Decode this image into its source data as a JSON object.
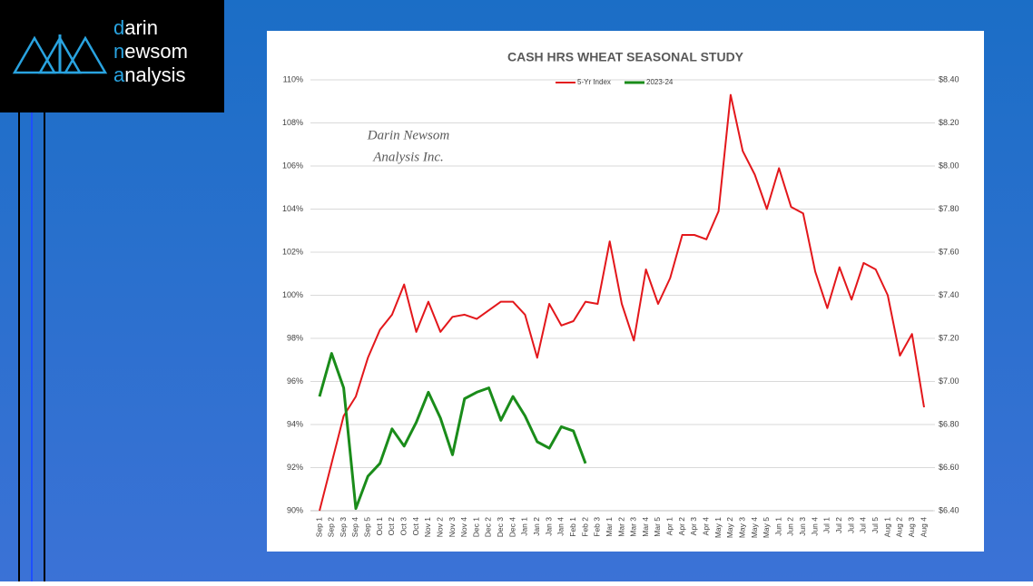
{
  "logo": [
    {
      "accent": "d",
      "rest": "arin"
    },
    {
      "accent": "n",
      "rest": "ewsom"
    },
    {
      "accent": "a",
      "rest": "nalysis"
    }
  ],
  "chart_data": {
    "type": "line",
    "title": "CASH HRS WHEAT SEASONAL STUDY",
    "annotations": [
      "Darin Newsom",
      "Analysis Inc."
    ],
    "categories": [
      "Sep 1",
      "Sep 2",
      "Sep 3",
      "Sep 4",
      "Sep 5",
      "Oct 1",
      "Oct 2",
      "Oct 3",
      "Oct 4",
      "Nov 1",
      "Nov 2",
      "Nov 3",
      "Nov 4",
      "Dec 1",
      "Dec 2",
      "Dec 3",
      "Dec 4",
      "Jan 1",
      "Jan 2",
      "Jan 3",
      "Jan 4",
      "Feb 1",
      "Feb 2",
      "Feb 3",
      "Mar 1",
      "Mar 2",
      "Mar 3",
      "Mar 4",
      "Mar 5",
      "Apr 1",
      "Apr 2",
      "Apr 3",
      "Apr 4",
      "May 1",
      "May 2",
      "May 3",
      "May 4",
      "May 5",
      "Jun 1",
      "Jun 2",
      "Jun 3",
      "Jun 4",
      "Jul 1",
      "Jul 2",
      "Jul 3",
      "Jul 4",
      "Jul 5",
      "Aug 1",
      "Aug 2",
      "Aug 3",
      "Aug 4"
    ],
    "series": [
      {
        "name": "5-Yr Index",
        "color": "#e3171b",
        "values": [
          90.0,
          92.2,
          94.4,
          95.3,
          97.1,
          98.4,
          99.1,
          100.5,
          98.3,
          99.7,
          98.3,
          99.0,
          99.1,
          98.9,
          99.3,
          99.7,
          99.7,
          99.1,
          97.1,
          99.6,
          98.6,
          98.8,
          99.7,
          99.6,
          102.5,
          99.6,
          97.9,
          101.2,
          99.6,
          100.8,
          102.8,
          102.8,
          102.6,
          103.9,
          109.3,
          106.7,
          105.6,
          104.0,
          105.9,
          104.1,
          103.8,
          101.1,
          99.4,
          101.3,
          99.8,
          101.5,
          101.2,
          100.0,
          97.2,
          98.2,
          94.8
        ]
      },
      {
        "name": "2023-24",
        "color": "#1a8c1a",
        "axis": "y2",
        "values": [
          6.93,
          7.13,
          6.97,
          6.41,
          6.56,
          6.62,
          6.78,
          6.7,
          6.81,
          6.95,
          6.83,
          6.66,
          6.92,
          6.95,
          6.97,
          6.82,
          6.93,
          6.84,
          6.72,
          6.69,
          6.79,
          6.77,
          6.62,
          null,
          null,
          null,
          null,
          null,
          null,
          null,
          null,
          null,
          null,
          null,
          null,
          null,
          null,
          null,
          null,
          null,
          null,
          null,
          null,
          null,
          null,
          null,
          null,
          null,
          null,
          null,
          null
        ]
      }
    ],
    "ylim": [
      90,
      110
    ],
    "yticks": [
      {
        "value": 90,
        "label": "90%"
      },
      {
        "value": 92,
        "label": "92%"
      },
      {
        "value": 94,
        "label": "94%"
      },
      {
        "value": 96,
        "label": "96%"
      },
      {
        "value": 98,
        "label": "98%"
      },
      {
        "value": 100,
        "label": "100%"
      },
      {
        "value": 102,
        "label": "102%"
      },
      {
        "value": 104,
        "label": "104%"
      },
      {
        "value": 106,
        "label": "106%"
      },
      {
        "value": 108,
        "label": "108%"
      },
      {
        "value": 110,
        "label": "110%"
      }
    ],
    "y2lim": [
      6.4,
      8.4
    ],
    "y2ticks": [
      {
        "value": 6.4,
        "label": "$6.40"
      },
      {
        "value": 6.6,
        "label": "$6.60"
      },
      {
        "value": 6.8,
        "label": "$6.80"
      },
      {
        "value": 7.0,
        "label": "$7.00"
      },
      {
        "value": 7.2,
        "label": "$7.20"
      },
      {
        "value": 7.4,
        "label": "$7.40"
      },
      {
        "value": 7.6,
        "label": "$7.60"
      },
      {
        "value": 7.8,
        "label": "$7.80"
      },
      {
        "value": 8.0,
        "label": "$8.00"
      },
      {
        "value": 8.2,
        "label": "$8.20"
      },
      {
        "value": 8.4,
        "label": "$8.40"
      }
    ],
    "grid": true,
    "legend": "top"
  }
}
